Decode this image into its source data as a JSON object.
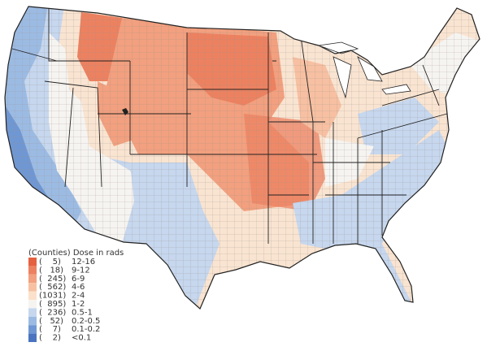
{
  "legend": {
    "title": "(Counties) Dose in rads",
    "items": [
      {
        "count": "(    5)",
        "range": "12-16",
        "color": "#e5603f"
      },
      {
        "count": "(   18)",
        "range": "9-12",
        "color": "#ec8160"
      },
      {
        "count": "(  245)",
        "range": "6-9",
        "color": "#f2a07f"
      },
      {
        "count": "(  562)",
        "range": "4-6",
        "color": "#f7c0a2"
      },
      {
        "count": "(1031)",
        "range": "2-4",
        "color": "#fbe1cb"
      },
      {
        "count": "(  895)",
        "range": "1-2",
        "color": "#f6f4f1"
      },
      {
        "count": "(  236)",
        "range": "0.5-1",
        "color": "#c6d7ee"
      },
      {
        "count": "(   52)",
        "range": "0.2-0.5",
        "color": "#9cbbe3"
      },
      {
        "count": "(    7)",
        "range": "0.1-0.2",
        "color": "#6f97d3"
      },
      {
        "count": "(    2)",
        "range": "<0.1",
        "color": "#4a74bf"
      }
    ]
  }
}
